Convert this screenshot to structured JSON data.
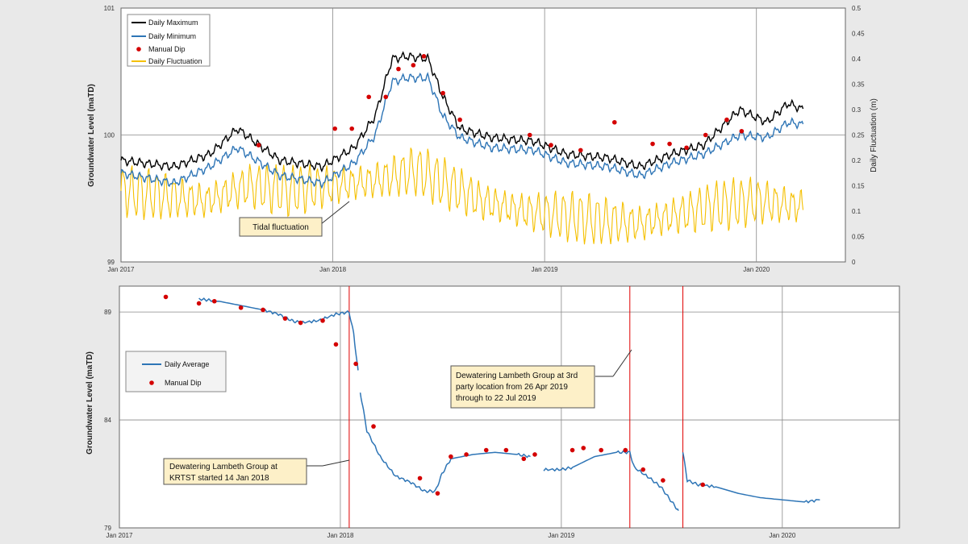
{
  "chart_data": [
    {
      "type": "line",
      "ylabel": "Groundwater  Level (maTD)",
      "y2label": "Daily Fluctuation (m)",
      "x_ticks": [
        "Jan 2017",
        "Jan 2018",
        "Jan 2019",
        "Jan 2020"
      ],
      "ylim": [
        99,
        101
      ],
      "y_ticks": [
        "99",
        "100",
        "101"
      ],
      "y2lim": [
        0,
        0.5
      ],
      "y2_ticks": [
        "0",
        "0.05",
        "0.1",
        "0.15",
        "0.2",
        "0.25",
        "0.3",
        "0.35",
        "0.4",
        "0.45",
        "0.5"
      ],
      "grid": true,
      "legend_position": "top-left",
      "legend": {
        "max": "Daily Maximum",
        "min": "Daily Minimum",
        "dip": "Manual Dip",
        "fluct": "Daily Fluctuation"
      },
      "colors": {
        "max": "#000000",
        "min": "#2e75b6",
        "dip": "#d40000",
        "fluct": "#f5c000"
      },
      "annotation": "Tidal fluctuation",
      "series": [
        {
          "name": "Daily Maximum",
          "x": [
            2017.0,
            2017.25,
            2017.42,
            2017.55,
            2017.75,
            2017.95,
            2018.1,
            2018.2,
            2018.28,
            2018.35,
            2018.45,
            2018.52,
            2018.6,
            2018.75,
            2018.95,
            2019.1,
            2019.3,
            2019.45,
            2019.6,
            2019.75,
            2019.92,
            2020.05,
            2020.15,
            2020.22
          ],
          "values": [
            99.8,
            99.75,
            99.85,
            100.05,
            99.8,
            99.75,
            99.9,
            100.15,
            100.6,
            100.62,
            100.6,
            100.3,
            100.05,
            99.98,
            99.95,
            99.85,
            99.82,
            99.75,
            99.85,
            99.92,
            100.2,
            100.1,
            100.25,
            100.2
          ]
        },
        {
          "name": "Daily Minimum",
          "x": [
            2017.0,
            2017.25,
            2017.42,
            2017.55,
            2017.75,
            2017.95,
            2018.1,
            2018.2,
            2018.28,
            2018.35,
            2018.45,
            2018.52,
            2018.6,
            2018.75,
            2018.95,
            2019.1,
            2019.3,
            2019.45,
            2019.6,
            2019.75,
            2019.92,
            2020.05,
            2020.15,
            2020.22
          ],
          "values": [
            99.7,
            99.62,
            99.75,
            99.9,
            99.68,
            99.62,
            99.78,
            100.0,
            100.42,
            100.45,
            100.45,
            100.15,
            99.98,
            99.9,
            99.88,
            99.78,
            99.75,
            99.68,
            99.78,
            99.85,
            100.0,
            99.98,
            100.1,
            100.08
          ]
        },
        {
          "name": "Manual Dip",
          "x": [
            2017.65,
            2018.01,
            2018.09,
            2018.17,
            2018.25,
            2018.31,
            2018.38,
            2018.43,
            2018.52,
            2018.6,
            2018.93,
            2019.03,
            2019.17,
            2019.33,
            2019.51,
            2019.59,
            2019.67,
            2019.76,
            2019.86,
            2019.93
          ],
          "values": [
            99.92,
            100.05,
            100.05,
            100.3,
            100.3,
            100.52,
            100.55,
            100.62,
            100.33,
            100.12,
            100.0,
            99.92,
            99.88,
            100.1,
            99.93,
            99.93,
            99.9,
            100.0,
            100.12,
            100.03
          ]
        },
        {
          "name": "Daily Fluctuation",
          "axis": "y2",
          "x": [
            2017.0,
            2017.2,
            2017.4,
            2017.6,
            2017.8,
            2018.0,
            2018.2,
            2018.4,
            2018.55,
            2018.7,
            2018.9,
            2019.1,
            2019.3,
            2019.45,
            2019.6,
            2019.8,
            2020.0,
            2020.2
          ],
          "values": [
            0.14,
            0.13,
            0.12,
            0.15,
            0.14,
            0.15,
            0.16,
            0.18,
            0.15,
            0.12,
            0.1,
            0.09,
            0.08,
            0.075,
            0.09,
            0.11,
            0.12,
            0.11
          ]
        }
      ]
    },
    {
      "type": "line",
      "ylabel": "Groundwater  Level (maTD)",
      "x_ticks": [
        "Jan 2017",
        "Jan 2018",
        "Jan 2019",
        "Jan 2020"
      ],
      "ylim": [
        79,
        90.2
      ],
      "y_ticks": [
        "79",
        "84",
        "89"
      ],
      "grid": true,
      "legend_position": "left",
      "legend": {
        "avg": "Daily Average",
        "dip": "Manual Dip"
      },
      "colors": {
        "avg": "#2e75b6",
        "dip": "#d40000",
        "event": "#e00000",
        "callout": "#fdf0c8"
      },
      "event_lines_x": [
        2018.04,
        2019.31,
        2019.55
      ],
      "annotations": [
        "Dewatering Lambeth Group at 3rd party location from 26 Apr  2019 through to 22 Jul 2019",
        "Dewatering Lambeth Group at KRTST started 14 Jan 2018"
      ],
      "series": [
        {
          "name": "Daily Average",
          "segments": [
            {
              "x": [
                2017.36,
                2017.45,
                2017.55,
                2017.65,
                2017.72,
                2017.78,
                2017.82,
                2017.9,
                2017.98,
                2018.04,
                2018.06,
                2018.08
              ],
              "values": [
                89.6,
                89.5,
                89.3,
                89.1,
                88.9,
                88.6,
                88.5,
                88.6,
                88.9,
                89.0,
                88.0,
                86.3
              ]
            },
            {
              "x": [
                2018.09,
                2018.12,
                2018.18,
                2018.25,
                2018.32,
                2018.38,
                2018.43,
                2018.46,
                2018.5,
                2018.6,
                2018.7,
                2018.8,
                2018.86
              ],
              "values": [
                85.3,
                83.5,
                82.3,
                81.4,
                81.1,
                80.7,
                80.7,
                81.5,
                82.2,
                82.4,
                82.5,
                82.4,
                82.3
              ]
            },
            {
              "x": [
                2018.92,
                2019.0,
                2019.05,
                2019.15,
                2019.25,
                2019.31,
                2019.33,
                2019.4,
                2019.45,
                2019.5,
                2019.53
              ],
              "values": [
                81.7,
                81.7,
                81.8,
                82.3,
                82.5,
                82.5,
                81.8,
                81.3,
                80.9,
                80.2,
                79.8
              ]
            },
            {
              "x": [
                2019.55,
                2019.57,
                2019.62,
                2019.7,
                2019.8,
                2019.9,
                2020.0,
                2020.1,
                2020.17
              ],
              "values": [
                82.5,
                81.2,
                81.0,
                80.9,
                80.6,
                80.4,
                80.3,
                80.2,
                80.3
              ]
            }
          ]
        },
        {
          "name": "Manual Dip",
          "x": [
            2017.21,
            2017.36,
            2017.43,
            2017.55,
            2017.65,
            2017.75,
            2017.82,
            2017.92,
            2017.98,
            2018.07,
            2018.15,
            2018.36,
            2018.44,
            2018.5,
            2018.57,
            2018.66,
            2018.75,
            2018.83,
            2018.88,
            2019.05,
            2019.1,
            2019.18,
            2019.29,
            2019.37,
            2019.46,
            2019.64
          ],
          "values": [
            89.7,
            89.4,
            89.5,
            89.2,
            89.1,
            88.7,
            88.5,
            88.6,
            87.5,
            86.6,
            83.7,
            81.3,
            80.6,
            82.3,
            82.4,
            82.6,
            82.6,
            82.2,
            82.4,
            82.6,
            82.7,
            82.6,
            82.6,
            81.7,
            81.2,
            81.0
          ]
        }
      ]
    }
  ]
}
